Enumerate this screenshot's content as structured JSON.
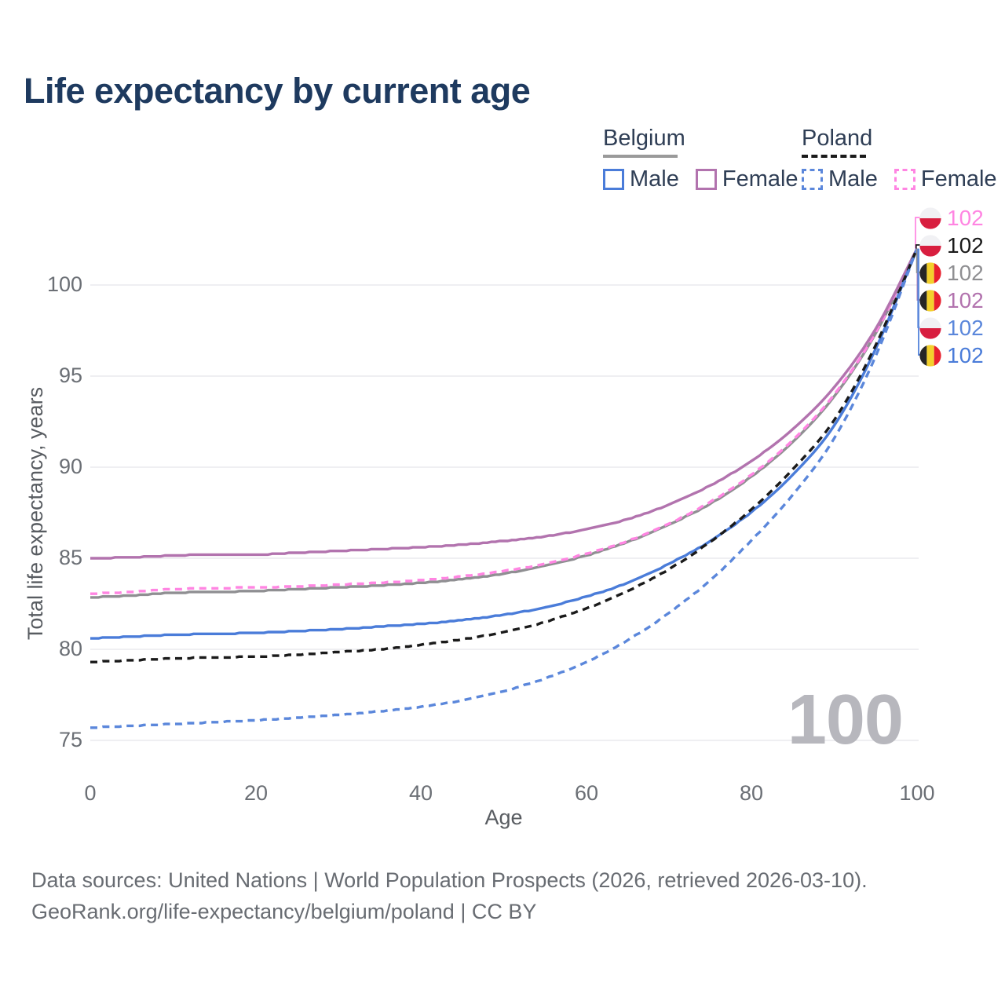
{
  "title": "Life expectancy by current age",
  "legend": {
    "groups": [
      {
        "label": "Belgium",
        "line_style": "solid",
        "line_color": "#9a9a9a",
        "items": [
          {
            "label": "Male",
            "color": "#4a7cd9"
          },
          {
            "label": "Female",
            "color": "#b273ae"
          }
        ]
      },
      {
        "label": "Poland",
        "line_style": "dashed",
        "line_color": "#1a1a1a",
        "items": [
          {
            "label": "Male",
            "color": "#5b87db"
          },
          {
            "label": "Female",
            "color": "#ff85e2"
          }
        ]
      }
    ]
  },
  "age_indicator": "100",
  "footer": {
    "line1": "Data sources: United Nations | World Population Prospects (2026, retrieved 2026-03-10).",
    "line2": "GeoRank.org/life-expectancy/belgium/poland | CC BY"
  },
  "chart_data": {
    "type": "line",
    "title": "Life expectancy by current age",
    "xlabel": "Age",
    "ylabel": "Total life expectancy, years",
    "xlim": [
      0,
      100
    ],
    "ylim": [
      74,
      103
    ],
    "xticks": [
      0,
      20,
      40,
      60,
      80,
      100
    ],
    "yticks": [
      75,
      80,
      85,
      90,
      95,
      100
    ],
    "grid": "horizontal",
    "legend_position": "top-right",
    "x": [
      0,
      5,
      10,
      15,
      20,
      25,
      30,
      35,
      40,
      45,
      50,
      55,
      60,
      65,
      70,
      75,
      80,
      85,
      90,
      95,
      100
    ],
    "series": [
      {
        "name": "Belgium Female",
        "country": "Belgium",
        "flag": "belgium",
        "color": "#b273ae",
        "dash": "solid",
        "end_label": "102",
        "label_row": 3,
        "values": [
          85.0,
          85.05,
          85.15,
          85.2,
          85.2,
          85.3,
          85.4,
          85.5,
          85.6,
          85.75,
          85.95,
          86.2,
          86.6,
          87.15,
          87.95,
          89.0,
          90.35,
          92.1,
          94.4,
          97.6,
          102
        ]
      },
      {
        "name": "Belgium",
        "country": "Belgium",
        "flag": "belgium",
        "color": "#8f8f92",
        "dash": "solid",
        "end_label": "102",
        "label_row": 2,
        "values": [
          82.85,
          82.95,
          83.1,
          83.15,
          83.2,
          83.3,
          83.4,
          83.5,
          83.65,
          83.85,
          84.15,
          84.6,
          85.15,
          85.9,
          86.85,
          88.0,
          89.5,
          91.4,
          93.9,
          97.35,
          102
        ]
      },
      {
        "name": "Poland Female",
        "country": "Poland",
        "flag": "poland",
        "color": "#ff85e2",
        "dash": "dashed",
        "end_label": "102",
        "label_row": 0,
        "values": [
          83.05,
          83.15,
          83.3,
          83.35,
          83.4,
          83.45,
          83.55,
          83.65,
          83.8,
          84.0,
          84.3,
          84.7,
          85.25,
          85.95,
          86.9,
          88.1,
          89.6,
          91.5,
          94.0,
          97.4,
          102
        ]
      },
      {
        "name": "Belgium Male",
        "country": "Belgium",
        "flag": "belgium",
        "color": "#4a7cd9",
        "dash": "solid",
        "end_label": "102",
        "label_row": 5,
        "values": [
          80.6,
          80.7,
          80.8,
          80.85,
          80.9,
          81.0,
          81.1,
          81.25,
          81.4,
          81.6,
          81.9,
          82.3,
          82.9,
          83.65,
          84.7,
          85.95,
          87.55,
          89.6,
          92.3,
          96.5,
          102
        ]
      },
      {
        "name": "Poland",
        "country": "Poland",
        "flag": "poland",
        "color": "#1a1a1a",
        "dash": "dashed",
        "end_label": "102",
        "label_row": 1,
        "values": [
          79.3,
          79.4,
          79.5,
          79.55,
          79.6,
          79.7,
          79.85,
          80.0,
          80.25,
          80.55,
          80.95,
          81.5,
          82.25,
          83.2,
          84.4,
          85.9,
          87.7,
          89.9,
          92.6,
          96.7,
          102
        ]
      },
      {
        "name": "Poland Male",
        "country": "Poland",
        "flag": "poland",
        "color": "#5b87db",
        "dash": "dashed",
        "end_label": "102",
        "label_row": 4,
        "values": [
          75.7,
          75.8,
          75.9,
          76.0,
          76.1,
          76.25,
          76.4,
          76.6,
          76.85,
          77.2,
          77.7,
          78.4,
          79.3,
          80.5,
          82.0,
          83.8,
          86.0,
          88.5,
          91.6,
          96.1,
          102
        ]
      }
    ]
  }
}
